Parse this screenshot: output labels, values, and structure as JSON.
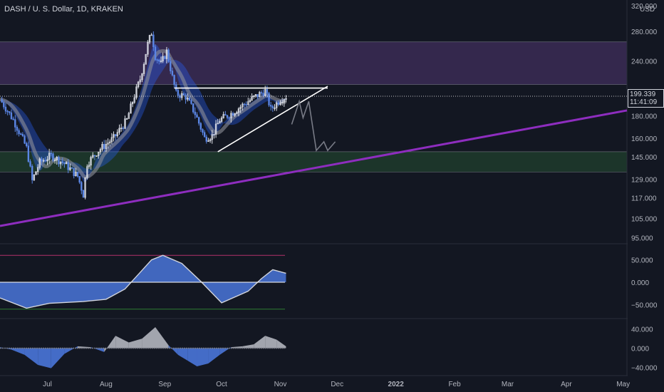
{
  "header": {
    "title": "DASH / U. S. Dollar, 1D, KRAKEN"
  },
  "price_tag": {
    "value": "199.339",
    "countdown": "11:41:09"
  },
  "colors": {
    "background": "#131722",
    "purple_zone": "#3b2c55",
    "green_zone": "#1f3b2c",
    "trendline_purple": "#8e2dbf",
    "ribbon_blue": "#2962ff",
    "candle_blue": "#5b86e5",
    "candle_white": "#e0e3eb",
    "oscillator_blue": "#4a76d9",
    "oscillator_gray": "#9598a1"
  },
  "chart_data": [
    {
      "type": "candlestick",
      "title": "DASH / U. S. Dollar, 1D, KRAKEN",
      "yscale": "log",
      "ylabel": "USD",
      "ylim": [
        92,
        330
      ],
      "y_ticks": [
        "320.000",
        "280.000",
        "240.000",
        "200.000",
        "180.000",
        "160.000",
        "145.000",
        "129.000",
        "117.000",
        "105.000",
        "95.000"
      ],
      "y_tick_values": [
        320,
        280,
        240,
        200,
        180,
        160,
        145,
        129,
        117,
        105,
        95
      ],
      "x_ticks": [
        "Jul",
        "Aug",
        "Sep",
        "Oct",
        "Nov",
        "Dec",
        "2022",
        "Feb",
        "Mar",
        "Apr",
        "May"
      ],
      "x_tick_dates": [
        "2021-07-01",
        "2021-08-01",
        "2021-09-01",
        "2021-10-01",
        "2021-11-01",
        "2021-12-01",
        "2022-01-01",
        "2022-02-01",
        "2022-03-01",
        "2022-04-01",
        "2022-05-01"
      ],
      "x_range": [
        "2021-06-06",
        "2022-05-03"
      ],
      "closes": [
        {
          "date": "2021-06-06",
          "close": 196
        },
        {
          "date": "2021-06-13",
          "close": 176
        },
        {
          "date": "2021-06-20",
          "close": 152
        },
        {
          "date": "2021-06-23",
          "close": 128
        },
        {
          "date": "2021-06-27",
          "close": 141
        },
        {
          "date": "2021-07-03",
          "close": 146
        },
        {
          "date": "2021-07-10",
          "close": 140
        },
        {
          "date": "2021-07-17",
          "close": 131
        },
        {
          "date": "2021-07-20",
          "close": 119
        },
        {
          "date": "2021-07-22",
          "close": 140
        },
        {
          "date": "2021-07-28",
          "close": 150
        },
        {
          "date": "2021-08-05",
          "close": 160
        },
        {
          "date": "2021-08-12",
          "close": 176
        },
        {
          "date": "2021-08-16",
          "close": 200
        },
        {
          "date": "2021-08-19",
          "close": 218
        },
        {
          "date": "2021-08-21",
          "close": 238
        },
        {
          "date": "2021-08-23",
          "close": 262
        },
        {
          "date": "2021-08-25",
          "close": 278
        },
        {
          "date": "2021-08-27",
          "close": 246
        },
        {
          "date": "2021-08-30",
          "close": 236
        },
        {
          "date": "2021-09-02",
          "close": 252
        },
        {
          "date": "2021-09-05",
          "close": 220
        },
        {
          "date": "2021-09-07",
          "close": 202
        },
        {
          "date": "2021-09-12",
          "close": 199
        },
        {
          "date": "2021-09-17",
          "close": 182
        },
        {
          "date": "2021-09-22",
          "close": 160
        },
        {
          "date": "2021-09-26",
          "close": 162
        },
        {
          "date": "2021-09-30",
          "close": 176
        },
        {
          "date": "2021-10-06",
          "close": 182
        },
        {
          "date": "2021-10-12",
          "close": 190
        },
        {
          "date": "2021-10-18",
          "close": 198
        },
        {
          "date": "2021-10-24",
          "close": 205
        },
        {
          "date": "2021-10-27",
          "close": 186
        },
        {
          "date": "2021-11-01",
          "close": 196
        },
        {
          "date": "2021-11-04",
          "close": 199
        }
      ],
      "zones": [
        {
          "name": "resistance",
          "from": 212,
          "to": 265,
          "color": "#3b2c55"
        },
        {
          "name": "support",
          "from": 134,
          "to": 149,
          "color": "#1f3b2c"
        }
      ],
      "lines": [
        {
          "name": "horizontal",
          "from": {
            "date": "2021-09-06",
            "value": 208
          },
          "to": {
            "date": "2021-11-26",
            "value": 208
          }
        },
        {
          "name": "rising-support",
          "from": {
            "date": "2021-09-29",
            "value": 149
          },
          "to": {
            "date": "2021-11-26",
            "value": 210
          }
        },
        {
          "name": "long-trendline",
          "from": {
            "date": "2021-06-06",
            "value": 101
          },
          "to": {
            "date": "2022-05-03",
            "value": 185
          }
        },
        {
          "name": "current-price",
          "from": {
            "date": "2021-06-06",
            "value": 199.339
          },
          "to": {
            "date": "2022-05-03",
            "value": 199.339
          }
        }
      ],
      "projection": [
        {
          "date": "2021-11-07",
          "value": 172
        },
        {
          "date": "2021-11-11",
          "value": 194
        },
        {
          "date": "2021-11-13",
          "value": 178
        },
        {
          "date": "2021-11-16",
          "value": 194
        },
        {
          "date": "2021-11-20",
          "value": 150
        },
        {
          "date": "2021-11-24",
          "value": 157
        },
        {
          "date": "2021-11-26",
          "value": 150
        },
        {
          "date": "2021-11-30",
          "value": 157
        }
      ]
    },
    {
      "type": "area",
      "ylim": [
        -70,
        70
      ],
      "y_ticks": [
        "50.000",
        "0.000",
        "−50.000"
      ],
      "y_tick_values": [
        50,
        0,
        -50
      ],
      "levels": [
        {
          "value": 60,
          "color": "#b2306a"
        },
        {
          "value": -60,
          "color": "#2e7d32"
        }
      ],
      "x": [
        "2021-06-06",
        "2021-06-20",
        "2021-07-02",
        "2021-07-20",
        "2021-08-01",
        "2021-08-11",
        "2021-08-19",
        "2021-08-25",
        "2021-08-31",
        "2021-09-10",
        "2021-09-20",
        "2021-10-01",
        "2021-10-15",
        "2021-10-22",
        "2021-10-28",
        "2021-11-04"
      ],
      "values": [
        -35,
        -58,
        -47,
        -43,
        -38,
        -15,
        22,
        50,
        60,
        42,
        2,
        -46,
        -20,
        8,
        28,
        20
      ]
    },
    {
      "type": "bar",
      "ylim": [
        -50,
        50
      ],
      "y_ticks": [
        "40.000",
        "0.000",
        "−40.000"
      ],
      "y_tick_values": [
        40,
        0,
        -40
      ],
      "x": [
        "2021-06-06",
        "2021-06-12",
        "2021-06-19",
        "2021-06-26",
        "2021-07-03",
        "2021-07-10",
        "2021-07-17",
        "2021-07-24",
        "2021-07-31",
        "2021-08-06",
        "2021-08-13",
        "2021-08-20",
        "2021-08-27",
        "2021-09-03",
        "2021-09-08",
        "2021-09-13",
        "2021-09-18",
        "2021-09-24",
        "2021-09-30",
        "2021-10-06",
        "2021-10-12",
        "2021-10-18",
        "2021-10-24",
        "2021-10-30",
        "2021-11-04"
      ],
      "values": [
        2,
        -3,
        -14,
        -35,
        -42,
        -12,
        4,
        2,
        -8,
        26,
        12,
        20,
        44,
        6,
        -14,
        -26,
        -38,
        -32,
        -14,
        2,
        4,
        8,
        26,
        18,
        4
      ]
    }
  ]
}
